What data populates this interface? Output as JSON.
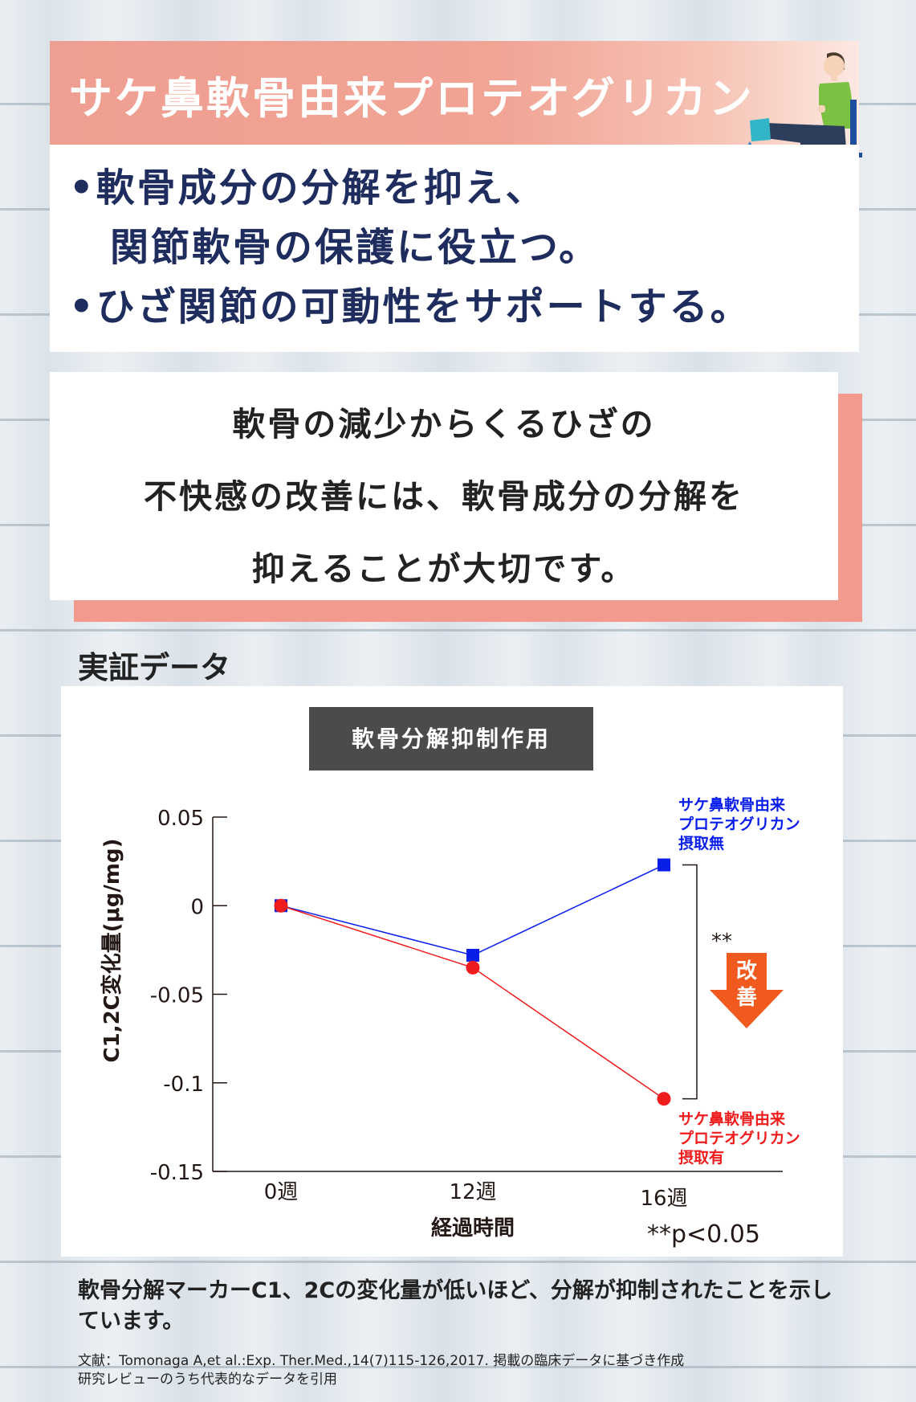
{
  "header": {
    "title": "サケ鼻軟骨由来プロテオグリカン",
    "illustration": "person-knee-exercise-on-chair"
  },
  "bullets": [
    "•軟骨成分の分解を抑え、",
    "　関節軟骨の保護に役立つ。",
    "•ひざ関節の可動性をサポートする。"
  ],
  "message": {
    "lines": [
      "軟骨の減少からくるひざの",
      "不快感の改善には、軟骨成分の分解を",
      "抑えることが大切です。"
    ]
  },
  "section_heading": "実証データ",
  "chart_data": {
    "type": "line",
    "title": "軟骨分解抑制作用",
    "categories": [
      "0週",
      "12週",
      "16週"
    ],
    "xlabel": "経過時間",
    "ylabel": "C1,2C変化量(μg/mg)",
    "ylim": [
      -0.15,
      0.05
    ],
    "yticks": [
      0.05,
      0,
      -0.05,
      -0.1,
      -0.15
    ],
    "ytick_labels": [
      "0.05",
      "0",
      "-0.05",
      "-0.1",
      "-0.15"
    ],
    "grid": false,
    "series": [
      {
        "name": "サケ鼻軟骨由来\nプロテオグリカン\n摂取無",
        "values": [
          0,
          -0.028,
          0.023
        ],
        "color": "#0a1eea",
        "marker": "square"
      },
      {
        "name": "サケ鼻軟骨由来\nプロテオグリカン\n摂取有",
        "values": [
          0,
          -0.035,
          -0.109
        ],
        "color": "#ee1c1c",
        "marker": "circle"
      }
    ],
    "annotations": {
      "significance": "**",
      "improvement": "改善",
      "p_value": "**p<0.05"
    },
    "colors": {
      "arrow": "#f05a1e"
    }
  },
  "caption": "軟骨分解マーカーC1、2Cの変化量が低いほど、分解が抑制されたことを示しています。",
  "reference_lines": [
    "文献：Tomonaga A,et al.:Exp. Ther.Med.,14(7)115-126,2017. 掲載の臨床データに基づき作成",
    "研究レビューのうち代表的なデータを引用"
  ]
}
